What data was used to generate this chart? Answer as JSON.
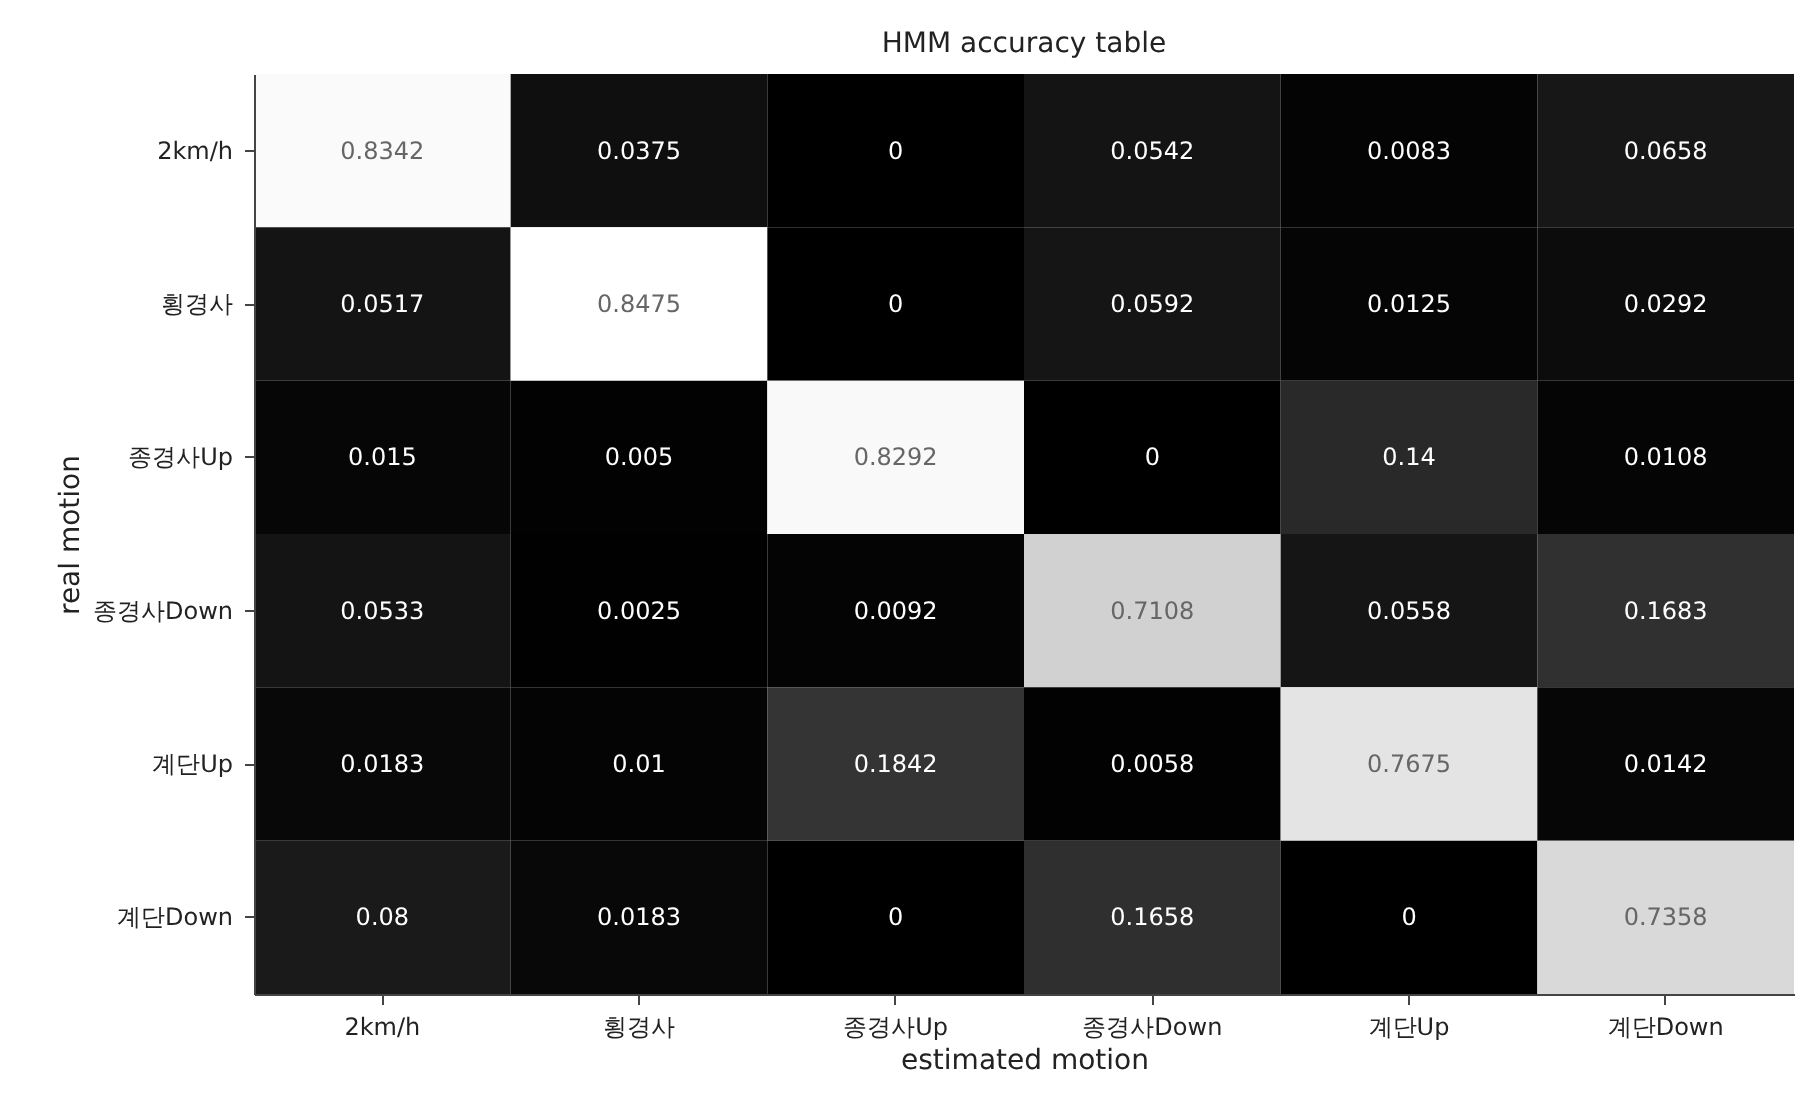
{
  "chart_data": {
    "type": "heatmap",
    "title": "HMM accuracy table",
    "xlabel": "estimated motion",
    "ylabel": "real motion",
    "categories": [
      "2km/h",
      "횡경사",
      "종경사Up",
      "종경사Down",
      "계단Up",
      "계단Down"
    ],
    "y_categories": [
      "2km/h",
      "횡경사",
      "종경사Up",
      "종경사Down",
      "계단Up",
      "계단Down"
    ],
    "cells": [
      [
        0.8342,
        0.0375,
        0,
        0.0542,
        0.0083,
        0.0658
      ],
      [
        0.0517,
        0.8475,
        0,
        0.0592,
        0.0125,
        0.0292
      ],
      [
        0.015,
        0.005,
        0.8292,
        0,
        0.14,
        0.0108
      ],
      [
        0.0533,
        0.0025,
        0.0092,
        0.7108,
        0.0558,
        0.1683
      ],
      [
        0.0183,
        0.01,
        0.1842,
        0.0058,
        0.7675,
        0.0142
      ],
      [
        0.08,
        0.0183,
        0,
        0.1658,
        0,
        0.7358
      ]
    ],
    "data_labels": true
  }
}
